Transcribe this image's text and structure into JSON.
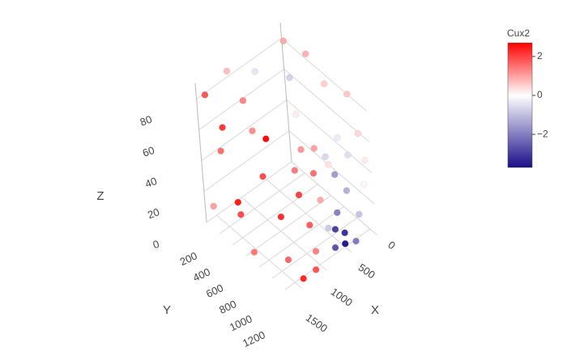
{
  "chart_data": {
    "type": "scatter3d",
    "xaxis_title": "X",
    "yaxis_title": "Y",
    "zaxis_title": "Z",
    "xlim": [
      0,
      1700
    ],
    "ylim": [
      0,
      1300
    ],
    "zlim": [
      0,
      90
    ],
    "xticks": [
      0,
      500,
      1000,
      1500
    ],
    "yticks": [
      200,
      400,
      600,
      800,
      1000,
      1200
    ],
    "zticks": [
      0,
      20,
      40,
      60,
      80
    ],
    "grid": true,
    "colorbar": {
      "title": "Cux2",
      "clim": [
        -3.7,
        2.7
      ],
      "colors": [
        "#1a0e8a",
        "#ffffff",
        "#ff0000"
      ],
      "ticks": [
        2,
        0,
        {
          "value": -2,
          "label": "−2"
        }
      ]
    },
    "series": [
      {
        "name": "Cux2",
        "x": [
          1650,
          1600,
          1550,
          1650,
          1500,
          1600,
          1550,
          1650,
          1450,
          1350,
          1250,
          1150,
          1300,
          1100,
          1000,
          900,
          800,
          700,
          600,
          500,
          400,
          300,
          200,
          100,
          50,
          0,
          20,
          0,
          30,
          1600,
          1200,
          900,
          600,
          300,
          1400,
          1000,
          200,
          1650,
          1200,
          700,
          850,
          1050,
          1450,
          1600,
          1500,
          550,
          750,
          400
        ],
        "y": [
          100,
          300,
          200,
          500,
          700,
          900,
          1100,
          1250,
          1300,
          1250,
          1300,
          1280,
          1300,
          1300,
          1290,
          1300,
          1300,
          1290,
          1300,
          1300,
          1280,
          1300,
          1300,
          1290,
          1200,
          1000,
          800,
          600,
          400,
          50,
          100,
          300,
          600,
          900,
          500,
          1000,
          200,
          700,
          1300,
          1300,
          1300,
          1300,
          1300,
          1000,
          400,
          1250,
          1280,
          1300
        ],
        "z": [
          85,
          70,
          50,
          30,
          80,
          60,
          40,
          20,
          75,
          55,
          35,
          15,
          85,
          65,
          45,
          25,
          10,
          30,
          15,
          40,
          60,
          20,
          70,
          50,
          30,
          80,
          45,
          20,
          85,
          10,
          90,
          90,
          90,
          90,
          90,
          90,
          90,
          5,
          5,
          55,
          70,
          80,
          5,
          88,
          15,
          5,
          20,
          5
        ],
        "values": [
          1.8,
          2.1,
          1.5,
          2.4,
          1.2,
          1.9,
          2.2,
          1.6,
          1.4,
          2.0,
          1.7,
          1.3,
          1.1,
          1.5,
          0.9,
          -0.8,
          -2.6,
          -1.9,
          -3.1,
          -1.2,
          -0.5,
          -0.9,
          0.4,
          0.2,
          0.1,
          0.6,
          -0.3,
          0.3,
          0.8,
          1.0,
          0.7,
          -0.4,
          -0.7,
          0.5,
          1.3,
          0.2,
          0.9,
          1.4,
          1.8,
          -1.5,
          -0.6,
          1.0,
          2.3,
          2.6,
          1.9,
          -3.5,
          -2.9,
          -2.0
        ]
      }
    ]
  }
}
